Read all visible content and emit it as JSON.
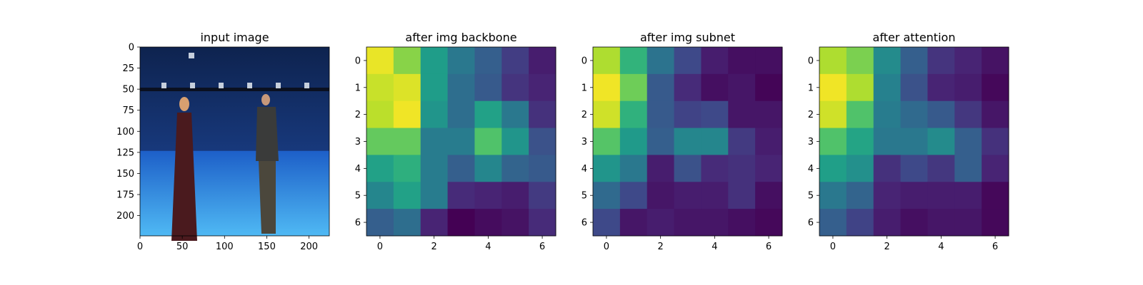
{
  "chart_data": [
    {
      "type": "image",
      "title": "input image",
      "image": "photo of two people standing in a blue motion-capture studio (blue backdrop, blue floor, overhead camera rig)",
      "xlim": [
        0,
        224
      ],
      "ylim": [
        224,
        0
      ],
      "xticks": [
        "0",
        "50",
        "100",
        "150",
        "200"
      ],
      "yticks": [
        "0",
        "25",
        "50",
        "75",
        "100",
        "125",
        "150",
        "175",
        "200"
      ]
    },
    {
      "type": "heatmap",
      "title": "after img backbone",
      "colormap": "viridis",
      "xticks": [
        "0",
        "2",
        "4",
        "6"
      ],
      "yticks": [
        "0",
        "1",
        "2",
        "3",
        "4",
        "5",
        "6"
      ],
      "values": [
        [
          0.97,
          0.82,
          0.55,
          0.4,
          0.3,
          0.18,
          0.08
        ],
        [
          0.92,
          0.95,
          0.55,
          0.36,
          0.28,
          0.15,
          0.1
        ],
        [
          0.9,
          0.98,
          0.52,
          0.36,
          0.57,
          0.4,
          0.14
        ],
        [
          0.76,
          0.76,
          0.42,
          0.42,
          0.72,
          0.52,
          0.25
        ],
        [
          0.57,
          0.63,
          0.42,
          0.3,
          0.46,
          0.32,
          0.28
        ],
        [
          0.46,
          0.57,
          0.42,
          0.12,
          0.1,
          0.08,
          0.17
        ],
        [
          0.3,
          0.36,
          0.1,
          0.0,
          0.03,
          0.05,
          0.12
        ]
      ]
    },
    {
      "type": "heatmap",
      "title": "after img subnet",
      "colormap": "viridis",
      "xticks": [
        "0",
        "2",
        "4",
        "6"
      ],
      "yticks": [
        "0",
        "1",
        "2",
        "3",
        "4",
        "5",
        "6"
      ],
      "values": [
        [
          0.88,
          0.65,
          0.38,
          0.22,
          0.08,
          0.04,
          0.04
        ],
        [
          0.98,
          0.78,
          0.28,
          0.12,
          0.04,
          0.06,
          0.01
        ],
        [
          0.93,
          0.64,
          0.28,
          0.2,
          0.22,
          0.06,
          0.06
        ],
        [
          0.73,
          0.54,
          0.3,
          0.46,
          0.46,
          0.17,
          0.08
        ],
        [
          0.52,
          0.4,
          0.08,
          0.25,
          0.12,
          0.14,
          0.1
        ],
        [
          0.34,
          0.22,
          0.06,
          0.08,
          0.08,
          0.14,
          0.04
        ],
        [
          0.22,
          0.06,
          0.08,
          0.06,
          0.06,
          0.04,
          0.02
        ]
      ]
    },
    {
      "type": "heatmap",
      "title": "after attention",
      "colormap": "viridis",
      "xticks": [
        "0",
        "2",
        "4",
        "6"
      ],
      "yticks": [
        "0",
        "1",
        "2",
        "3",
        "4",
        "5",
        "6"
      ],
      "values": [
        [
          0.88,
          0.8,
          0.48,
          0.3,
          0.15,
          0.1,
          0.05
        ],
        [
          0.98,
          0.88,
          0.44,
          0.25,
          0.1,
          0.08,
          0.02
        ],
        [
          0.93,
          0.72,
          0.42,
          0.34,
          0.28,
          0.16,
          0.06
        ],
        [
          0.72,
          0.58,
          0.4,
          0.4,
          0.48,
          0.3,
          0.14
        ],
        [
          0.56,
          0.5,
          0.14,
          0.22,
          0.16,
          0.3,
          0.1
        ],
        [
          0.4,
          0.32,
          0.1,
          0.08,
          0.08,
          0.08,
          0.02
        ],
        [
          0.3,
          0.2,
          0.08,
          0.04,
          0.06,
          0.06,
          0.02
        ]
      ]
    }
  ]
}
